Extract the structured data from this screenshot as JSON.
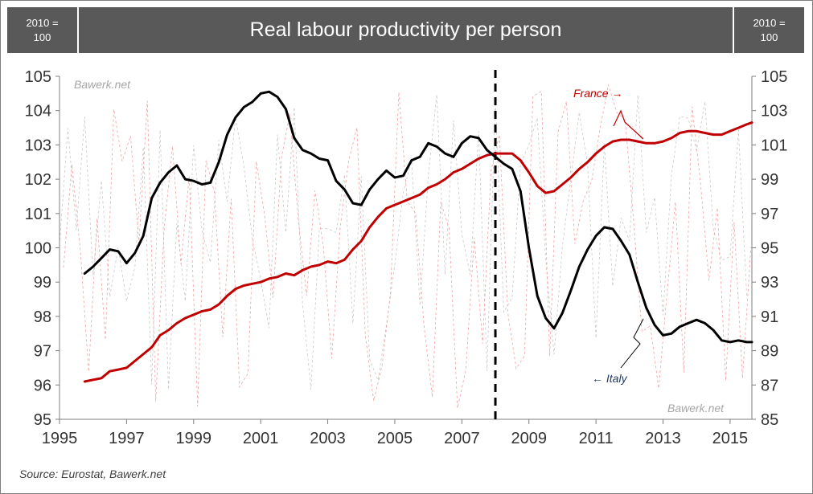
{
  "header": {
    "left_unit": "2010 =\n100",
    "title": "Real labour productivity per person",
    "right_unit": "2010 =\n100"
  },
  "source": "Source: Eurostat, Bawerk.net",
  "watermarks": [
    "Bawerk.net",
    "Bawerk.net"
  ],
  "annotations": {
    "france": "France →",
    "italy": "← Italy"
  },
  "colors": {
    "france": "#c00000",
    "italy": "#000000",
    "france_faint": "#f2a0a0",
    "italy_faint": "#c8c8c8",
    "divider": "#000000"
  },
  "chart_data": {
    "type": "line",
    "title": "Real labour productivity per person",
    "xlim": [
      1995,
      2015.65
    ],
    "x_ticks": [
      "1995",
      "1997",
      "1999",
      "2001",
      "2003",
      "2005",
      "2007",
      "2009",
      "2011",
      "2013",
      "2015"
    ],
    "y_left": {
      "lim": [
        95,
        105
      ],
      "ticks": [
        "95",
        "96",
        "97",
        "98",
        "99",
        "100",
        "101",
        "102",
        "103",
        "104",
        "105"
      ]
    },
    "y_right": {
      "lim": [
        85,
        105
      ],
      "ticks": [
        "85",
        "87",
        "89",
        "91",
        "93",
        "95",
        "97",
        "99",
        "101",
        "103",
        "105"
      ]
    },
    "vertical_line_x": 2008,
    "grid": false,
    "series": [
      {
        "name": "France",
        "axis": "left",
        "color": "#c00000",
        "points": [
          [
            1995.75,
            96.1
          ],
          [
            1996.0,
            96.15
          ],
          [
            1996.25,
            96.2
          ],
          [
            1996.5,
            96.4
          ],
          [
            1996.75,
            96.45
          ],
          [
            1997.0,
            96.5
          ],
          [
            1997.25,
            96.7
          ],
          [
            1997.5,
            96.9
          ],
          [
            1997.75,
            97.1
          ],
          [
            1998.0,
            97.45
          ],
          [
            1998.25,
            97.6
          ],
          [
            1998.5,
            97.8
          ],
          [
            1998.75,
            97.95
          ],
          [
            1999.0,
            98.05
          ],
          [
            1999.25,
            98.15
          ],
          [
            1999.5,
            98.2
          ],
          [
            1999.75,
            98.35
          ],
          [
            2000.0,
            98.6
          ],
          [
            2000.25,
            98.8
          ],
          [
            2000.5,
            98.9
          ],
          [
            2000.75,
            98.95
          ],
          [
            2001.0,
            99.0
          ],
          [
            2001.25,
            99.1
          ],
          [
            2001.5,
            99.15
          ],
          [
            2001.75,
            99.25
          ],
          [
            2002.0,
            99.2
          ],
          [
            2002.25,
            99.35
          ],
          [
            2002.5,
            99.45
          ],
          [
            2002.75,
            99.5
          ],
          [
            2003.0,
            99.6
          ],
          [
            2003.25,
            99.55
          ],
          [
            2003.5,
            99.65
          ],
          [
            2003.75,
            99.95
          ],
          [
            2004.0,
            100.2
          ],
          [
            2004.25,
            100.6
          ],
          [
            2004.5,
            100.9
          ],
          [
            2004.75,
            101.15
          ],
          [
            2005.0,
            101.25
          ],
          [
            2005.25,
            101.35
          ],
          [
            2005.5,
            101.45
          ],
          [
            2005.75,
            101.55
          ],
          [
            2006.0,
            101.75
          ],
          [
            2006.25,
            101.85
          ],
          [
            2006.5,
            102.0
          ],
          [
            2006.75,
            102.2
          ],
          [
            2007.0,
            102.3
          ],
          [
            2007.25,
            102.45
          ],
          [
            2007.5,
            102.6
          ],
          [
            2007.75,
            102.7
          ],
          [
            2008.0,
            102.75
          ],
          [
            2008.25,
            102.75
          ],
          [
            2008.5,
            102.75
          ],
          [
            2008.75,
            102.55
          ],
          [
            2009.0,
            102.2
          ],
          [
            2009.25,
            101.8
          ],
          [
            2009.5,
            101.6
          ],
          [
            2009.75,
            101.65
          ],
          [
            2010.0,
            101.85
          ],
          [
            2010.25,
            102.05
          ],
          [
            2010.5,
            102.3
          ],
          [
            2010.75,
            102.5
          ],
          [
            2011.0,
            102.75
          ],
          [
            2011.25,
            102.95
          ],
          [
            2011.5,
            103.1
          ],
          [
            2011.75,
            103.15
          ],
          [
            2012.0,
            103.15
          ],
          [
            2012.25,
            103.1
          ],
          [
            2012.5,
            103.05
          ],
          [
            2012.75,
            103.05
          ],
          [
            2013.0,
            103.1
          ],
          [
            2013.25,
            103.2
          ],
          [
            2013.5,
            103.35
          ],
          [
            2013.75,
            103.4
          ],
          [
            2014.0,
            103.4
          ],
          [
            2014.25,
            103.35
          ],
          [
            2014.5,
            103.3
          ],
          [
            2014.75,
            103.3
          ],
          [
            2015.0,
            103.4
          ],
          [
            2015.25,
            103.5
          ],
          [
            2015.5,
            103.6
          ],
          [
            2015.65,
            103.65
          ]
        ]
      },
      {
        "name": "Italy",
        "axis": "left",
        "color": "#000000",
        "points": [
          [
            1995.75,
            99.25
          ],
          [
            1996.0,
            99.45
          ],
          [
            1996.25,
            99.7
          ],
          [
            1996.5,
            99.95
          ],
          [
            1996.75,
            99.9
          ],
          [
            1997.0,
            99.55
          ],
          [
            1997.25,
            99.85
          ],
          [
            1997.5,
            100.35
          ],
          [
            1997.75,
            101.45
          ],
          [
            1998.0,
            101.9
          ],
          [
            1998.25,
            102.2
          ],
          [
            1998.5,
            102.4
          ],
          [
            1998.75,
            102.0
          ],
          [
            1999.0,
            101.95
          ],
          [
            1999.25,
            101.85
          ],
          [
            1999.5,
            101.9
          ],
          [
            1999.75,
            102.5
          ],
          [
            2000.0,
            103.3
          ],
          [
            2000.25,
            103.8
          ],
          [
            2000.5,
            104.1
          ],
          [
            2000.75,
            104.25
          ],
          [
            2001.0,
            104.5
          ],
          [
            2001.25,
            104.55
          ],
          [
            2001.5,
            104.4
          ],
          [
            2001.75,
            104.05
          ],
          [
            2002.0,
            103.2
          ],
          [
            2002.25,
            102.85
          ],
          [
            2002.5,
            102.75
          ],
          [
            2002.75,
            102.6
          ],
          [
            2003.0,
            102.55
          ],
          [
            2003.25,
            101.95
          ],
          [
            2003.5,
            101.7
          ],
          [
            2003.75,
            101.3
          ],
          [
            2004.0,
            101.25
          ],
          [
            2004.25,
            101.7
          ],
          [
            2004.5,
            102.0
          ],
          [
            2004.75,
            102.25
          ],
          [
            2005.0,
            102.05
          ],
          [
            2005.25,
            102.1
          ],
          [
            2005.5,
            102.55
          ],
          [
            2005.75,
            102.65
          ],
          [
            2006.0,
            103.05
          ],
          [
            2006.25,
            102.95
          ],
          [
            2006.5,
            102.75
          ],
          [
            2006.75,
            102.65
          ],
          [
            2007.0,
            103.05
          ],
          [
            2007.25,
            103.25
          ],
          [
            2007.5,
            103.2
          ],
          [
            2007.75,
            102.85
          ],
          [
            2008.0,
            102.65
          ],
          [
            2008.25,
            102.45
          ],
          [
            2008.5,
            102.3
          ],
          [
            2008.75,
            101.65
          ],
          [
            2009.0,
            100.0
          ],
          [
            2009.25,
            98.6
          ],
          [
            2009.5,
            97.95
          ],
          [
            2009.75,
            97.65
          ],
          [
            2010.0,
            98.1
          ],
          [
            2010.25,
            98.75
          ],
          [
            2010.5,
            99.45
          ],
          [
            2010.75,
            99.95
          ],
          [
            2011.0,
            100.35
          ],
          [
            2011.25,
            100.6
          ],
          [
            2011.5,
            100.55
          ],
          [
            2011.75,
            100.2
          ],
          [
            2012.0,
            99.8
          ],
          [
            2012.25,
            99.0
          ],
          [
            2012.5,
            98.25
          ],
          [
            2012.75,
            97.75
          ],
          [
            2013.0,
            97.45
          ],
          [
            2013.25,
            97.5
          ],
          [
            2013.5,
            97.7
          ],
          [
            2013.75,
            97.8
          ],
          [
            2014.0,
            97.9
          ],
          [
            2014.25,
            97.8
          ],
          [
            2014.5,
            97.6
          ],
          [
            2014.75,
            97.3
          ],
          [
            2015.0,
            97.25
          ],
          [
            2015.25,
            97.3
          ],
          [
            2015.5,
            97.25
          ],
          [
            2015.65,
            97.25
          ]
        ]
      }
    ]
  }
}
